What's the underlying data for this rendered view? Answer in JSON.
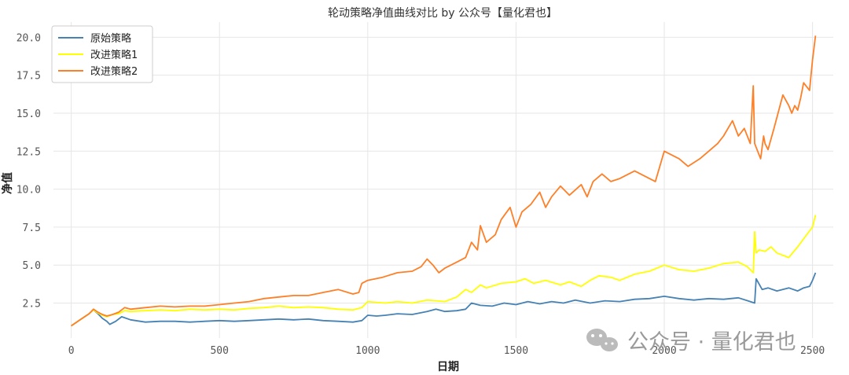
{
  "chart_data": {
    "type": "line",
    "title": "轮动策略净值曲线对比 by 公众号【量化君也】",
    "xlabel": "日期",
    "ylabel": "净值",
    "xlim": [
      -60,
      2570
    ],
    "ylim": [
      0.2,
      21.0
    ],
    "xticks": [
      0,
      500,
      1000,
      1500,
      2000,
      2500
    ],
    "yticks": [
      2.5,
      5.0,
      7.5,
      10.0,
      12.5,
      15.0,
      17.5,
      20.0
    ],
    "grid": true,
    "legend_position": "top-left",
    "series": [
      {
        "name": "原始策略",
        "color": "#4682b4",
        "x": [
          0,
          30,
          60,
          75,
          90,
          105,
          120,
          130,
          150,
          170,
          200,
          250,
          300,
          350,
          400,
          450,
          500,
          550,
          600,
          650,
          700,
          750,
          800,
          850,
          900,
          950,
          980,
          1000,
          1030,
          1060,
          1100,
          1150,
          1200,
          1230,
          1260,
          1300,
          1330,
          1350,
          1380,
          1420,
          1460,
          1500,
          1540,
          1580,
          1620,
          1660,
          1700,
          1750,
          1800,
          1850,
          1900,
          1950,
          2000,
          2050,
          2100,
          2150,
          2200,
          2250,
          2290,
          2305,
          2310,
          2330,
          2350,
          2380,
          2420,
          2450,
          2470,
          2490,
          2500,
          2510
        ],
        "y": [
          1.0,
          1.4,
          1.8,
          2.05,
          1.8,
          1.5,
          1.3,
          1.1,
          1.3,
          1.6,
          1.4,
          1.25,
          1.3,
          1.3,
          1.25,
          1.3,
          1.35,
          1.3,
          1.35,
          1.4,
          1.45,
          1.4,
          1.45,
          1.35,
          1.3,
          1.25,
          1.35,
          1.7,
          1.65,
          1.7,
          1.8,
          1.75,
          1.95,
          2.1,
          1.95,
          2.0,
          2.1,
          2.5,
          2.35,
          2.3,
          2.5,
          2.4,
          2.6,
          2.45,
          2.6,
          2.5,
          2.7,
          2.5,
          2.65,
          2.6,
          2.75,
          2.8,
          2.95,
          2.8,
          2.7,
          2.8,
          2.75,
          2.85,
          2.6,
          2.5,
          4.1,
          3.4,
          3.5,
          3.3,
          3.5,
          3.3,
          3.5,
          3.6,
          4.0,
          4.5
        ]
      },
      {
        "name": "改进策略1",
        "color": "#ffff00",
        "x": [
          0,
          30,
          60,
          75,
          90,
          105,
          120,
          140,
          160,
          180,
          200,
          250,
          300,
          350,
          400,
          450,
          500,
          550,
          600,
          650,
          700,
          750,
          800,
          850,
          900,
          950,
          980,
          1000,
          1030,
          1060,
          1100,
          1150,
          1200,
          1230,
          1260,
          1300,
          1330,
          1350,
          1380,
          1400,
          1450,
          1500,
          1530,
          1560,
          1600,
          1650,
          1680,
          1720,
          1750,
          1780,
          1820,
          1850,
          1900,
          1950,
          2000,
          2050,
          2100,
          2150,
          2200,
          2250,
          2280,
          2300,
          2305,
          2310,
          2320,
          2340,
          2360,
          2380,
          2420,
          2450,
          2480,
          2500,
          2510
        ],
        "y": [
          1.0,
          1.4,
          1.8,
          2.05,
          1.85,
          1.7,
          1.6,
          1.75,
          1.8,
          2.0,
          1.95,
          2.0,
          2.05,
          2.0,
          2.1,
          2.05,
          2.1,
          2.05,
          2.15,
          2.2,
          2.3,
          2.2,
          2.25,
          2.2,
          2.1,
          2.05,
          2.2,
          2.6,
          2.55,
          2.5,
          2.6,
          2.5,
          2.7,
          2.65,
          2.6,
          2.9,
          3.4,
          3.2,
          3.7,
          3.5,
          3.8,
          3.9,
          4.1,
          3.8,
          4.0,
          3.7,
          3.9,
          3.6,
          4.0,
          4.3,
          4.2,
          4.0,
          4.4,
          4.6,
          5.0,
          4.7,
          4.6,
          4.8,
          5.1,
          5.2,
          4.9,
          4.5,
          7.2,
          5.8,
          6.0,
          5.9,
          6.2,
          5.8,
          5.5,
          6.2,
          7.0,
          7.5,
          8.3
        ]
      },
      {
        "name": "改进策略2",
        "color": "#ff7f27",
        "x": [
          0,
          30,
          60,
          75,
          90,
          105,
          120,
          140,
          160,
          180,
          200,
          250,
          300,
          350,
          400,
          450,
          500,
          550,
          600,
          650,
          700,
          750,
          800,
          850,
          900,
          950,
          970,
          980,
          1000,
          1050,
          1100,
          1150,
          1180,
          1200,
          1220,
          1240,
          1260,
          1300,
          1330,
          1350,
          1370,
          1380,
          1400,
          1430,
          1450,
          1480,
          1500,
          1520,
          1550,
          1580,
          1600,
          1620,
          1650,
          1680,
          1720,
          1740,
          1760,
          1790,
          1820,
          1850,
          1900,
          1950,
          1970,
          2000,
          2050,
          2080,
          2120,
          2150,
          2180,
          2200,
          2230,
          2250,
          2270,
          2290,
          2300,
          2305,
          2315,
          2325,
          2335,
          2340,
          2350,
          2370,
          2400,
          2420,
          2430,
          2440,
          2450,
          2460,
          2470,
          2490,
          2500,
          2510
        ],
        "y": [
          1.0,
          1.4,
          1.8,
          2.1,
          1.9,
          1.75,
          1.65,
          1.75,
          1.9,
          2.2,
          2.1,
          2.2,
          2.3,
          2.25,
          2.3,
          2.3,
          2.4,
          2.5,
          2.6,
          2.8,
          2.9,
          3.0,
          3.0,
          3.2,
          3.4,
          3.1,
          3.2,
          3.8,
          4.0,
          4.2,
          4.5,
          4.6,
          4.9,
          5.4,
          5.0,
          4.5,
          4.8,
          5.2,
          5.5,
          6.5,
          6.0,
          7.6,
          6.5,
          7.0,
          8.0,
          8.8,
          7.5,
          8.5,
          9.0,
          9.8,
          8.8,
          9.5,
          10.2,
          9.6,
          10.3,
          9.5,
          10.5,
          11.0,
          10.5,
          10.7,
          11.2,
          10.7,
          10.5,
          12.5,
          12.0,
          11.5,
          12.0,
          12.5,
          13.0,
          13.5,
          14.5,
          13.5,
          14.0,
          13.0,
          16.8,
          13.0,
          12.5,
          12.0,
          13.5,
          13.0,
          12.6,
          14.0,
          16.2,
          15.5,
          15.0,
          15.5,
          15.2,
          16.0,
          17.0,
          16.5,
          18.5,
          20.1
        ]
      }
    ]
  },
  "watermark": {
    "text": "公众号 · 量化君也",
    "icon": "wechat-icon"
  }
}
